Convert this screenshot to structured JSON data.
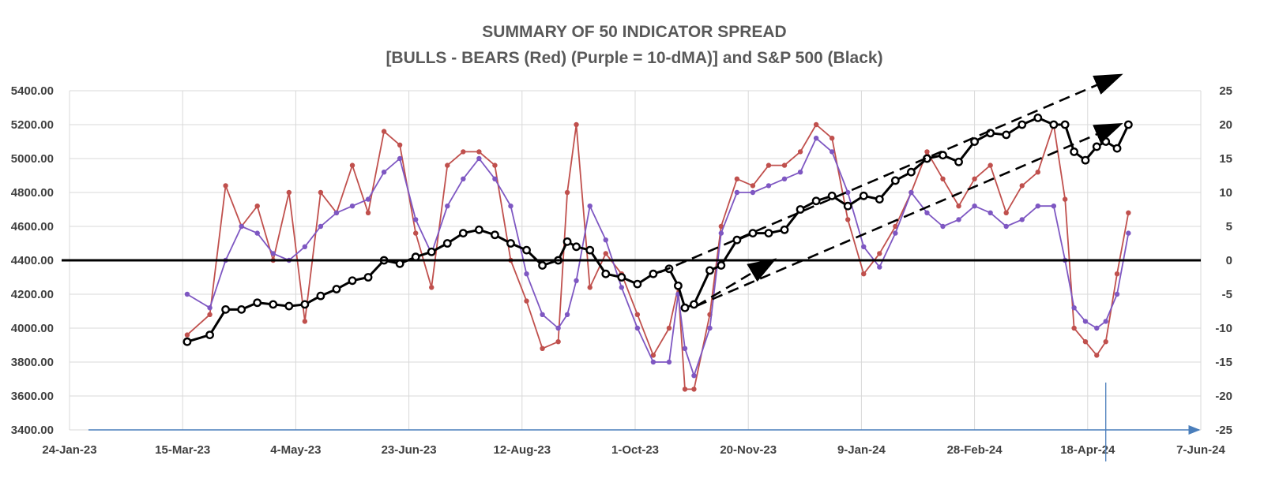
{
  "chart_data": {
    "type": "line",
    "title": "SUMMARY OF 50 INDICATOR SPREAD",
    "subtitle": "[BULLS - BEARS (Red) (Purple = 10-dMA)] and S&P 500 (Black)",
    "xlabel": "",
    "ylabel": "",
    "x_ticks": [
      "24-Jan-23",
      "15-Mar-23",
      "4-May-23",
      "23-Jun-23",
      "12-Aug-23",
      "1-Oct-23",
      "20-Nov-23",
      "9-Jan-24",
      "28-Feb-24",
      "18-Apr-24",
      "7-Jun-24"
    ],
    "xlim": [
      "2023-01-24",
      "2024-06-07"
    ],
    "y_left_ticks": [
      "3400.00",
      "3600.00",
      "3800.00",
      "4000.00",
      "4200.00",
      "4400.00",
      "4600.00",
      "4800.00",
      "5000.00",
      "5200.00",
      "5400.00"
    ],
    "y_left_lim": [
      3400,
      5400
    ],
    "y_right_ticks": [
      "-25",
      "-20",
      "-15",
      "-10",
      "-5",
      "0",
      "5",
      "10",
      "15",
      "20",
      "25"
    ],
    "y_right_lim": [
      -25,
      25
    ],
    "grid": true,
    "legend": "none",
    "colors": {
      "spread": "#c0504d",
      "ma": "#7e57c2",
      "sp500": "#000000",
      "zero_line": "#000000",
      "trend": "#000000",
      "axis": "#4a7ebb"
    },
    "series": [
      {
        "axis": "right",
        "color": "#c0504d",
        "x": [
          "2023-03-17",
          "2023-03-27",
          "2023-04-03",
          "2023-04-10",
          "2023-04-17",
          "2023-04-24",
          "2023-05-01",
          "2023-05-08",
          "2023-05-15",
          "2023-05-22",
          "2023-05-29",
          "2023-06-05",
          "2023-06-12",
          "2023-06-19",
          "2023-06-26",
          "2023-07-03",
          "2023-07-10",
          "2023-07-17",
          "2023-07-24",
          "2023-07-31",
          "2023-08-07",
          "2023-08-14",
          "2023-08-21",
          "2023-08-28",
          "2023-09-01",
          "2023-09-05",
          "2023-09-11",
          "2023-09-18",
          "2023-09-25",
          "2023-10-02",
          "2023-10-09",
          "2023-10-16",
          "2023-10-20",
          "2023-10-23",
          "2023-10-27",
          "2023-11-03",
          "2023-11-08",
          "2023-11-15",
          "2023-11-22",
          "2023-11-29",
          "2023-12-06",
          "2023-12-13",
          "2023-12-20",
          "2023-12-27",
          "2024-01-03",
          "2024-01-10",
          "2024-01-17",
          "2024-01-24",
          "2024-01-31",
          "2024-02-07",
          "2024-02-14",
          "2024-02-21",
          "2024-02-28",
          "2024-03-06",
          "2024-03-13",
          "2024-03-20",
          "2024-03-27",
          "2024-04-03",
          "2024-04-08",
          "2024-04-12",
          "2024-04-17",
          "2024-04-22",
          "2024-04-26",
          "2024-05-01",
          "2024-05-06"
        ],
        "values": [
          -11,
          -8,
          11,
          5,
          8,
          0,
          10,
          -9,
          10,
          7,
          14,
          7,
          19,
          17,
          4,
          -4,
          14,
          16,
          16,
          14,
          0,
          -6,
          -13,
          -12,
          10,
          20,
          -4,
          1,
          -2,
          -8,
          -14,
          -10,
          -4,
          -19,
          -19,
          -8,
          5,
          12,
          11,
          14,
          14,
          16,
          20,
          18,
          6,
          -2,
          1,
          5,
          10,
          16,
          12,
          8,
          12,
          14,
          7,
          11,
          13,
          20,
          9,
          -10,
          -12,
          -14,
          -12,
          -2,
          7
        ]
      },
      {
        "axis": "right",
        "color": "#7e57c2",
        "x": [
          "2023-03-17",
          "2023-03-27",
          "2023-04-03",
          "2023-04-10",
          "2023-04-17",
          "2023-04-24",
          "2023-05-01",
          "2023-05-08",
          "2023-05-15",
          "2023-05-22",
          "2023-05-29",
          "2023-06-05",
          "2023-06-12",
          "2023-06-19",
          "2023-06-26",
          "2023-07-03",
          "2023-07-10",
          "2023-07-17",
          "2023-07-24",
          "2023-07-31",
          "2023-08-07",
          "2023-08-14",
          "2023-08-21",
          "2023-08-28",
          "2023-09-01",
          "2023-09-05",
          "2023-09-11",
          "2023-09-18",
          "2023-09-25",
          "2023-10-02",
          "2023-10-09",
          "2023-10-16",
          "2023-10-20",
          "2023-10-23",
          "2023-10-27",
          "2023-11-03",
          "2023-11-08",
          "2023-11-15",
          "2023-11-22",
          "2023-11-29",
          "2023-12-06",
          "2023-12-13",
          "2023-12-20",
          "2023-12-27",
          "2024-01-03",
          "2024-01-10",
          "2024-01-17",
          "2024-01-24",
          "2024-01-31",
          "2024-02-07",
          "2024-02-14",
          "2024-02-21",
          "2024-02-28",
          "2024-03-06",
          "2024-03-13",
          "2024-03-20",
          "2024-03-27",
          "2024-04-03",
          "2024-04-08",
          "2024-04-12",
          "2024-04-17",
          "2024-04-22",
          "2024-04-26",
          "2024-05-01",
          "2024-05-06"
        ],
        "values": [
          -5,
          -7,
          0,
          5,
          4,
          1,
          0,
          2,
          5,
          7,
          8,
          9,
          13,
          15,
          6,
          1,
          8,
          12,
          15,
          12,
          8,
          -2,
          -8,
          -10,
          -8,
          -3,
          8,
          3,
          -4,
          -10,
          -15,
          -15,
          -5,
          -13,
          -17,
          -10,
          4,
          10,
          10,
          11,
          12,
          13,
          18,
          16,
          10,
          2,
          -1,
          4,
          10,
          7,
          5,
          6,
          8,
          7,
          5,
          6,
          8,
          8,
          0,
          -7,
          -9,
          -10,
          -9,
          -5,
          4
        ]
      },
      {
        "axis": "left",
        "color": "#000000",
        "x": [
          "2023-03-17",
          "2023-03-27",
          "2023-04-03",
          "2023-04-10",
          "2023-04-17",
          "2023-04-24",
          "2023-05-01",
          "2023-05-08",
          "2023-05-15",
          "2023-05-22",
          "2023-05-29",
          "2023-06-05",
          "2023-06-12",
          "2023-06-19",
          "2023-06-26",
          "2023-07-03",
          "2023-07-10",
          "2023-07-17",
          "2023-07-24",
          "2023-07-31",
          "2023-08-07",
          "2023-08-14",
          "2023-08-21",
          "2023-08-28",
          "2023-09-01",
          "2023-09-05",
          "2023-09-11",
          "2023-09-18",
          "2023-09-25",
          "2023-10-02",
          "2023-10-09",
          "2023-10-16",
          "2023-10-20",
          "2023-10-23",
          "2023-10-27",
          "2023-11-03",
          "2023-11-08",
          "2023-11-15",
          "2023-11-22",
          "2023-11-29",
          "2023-12-06",
          "2023-12-13",
          "2023-12-20",
          "2023-12-27",
          "2024-01-03",
          "2024-01-10",
          "2024-01-17",
          "2024-01-24",
          "2024-01-31",
          "2024-02-07",
          "2024-02-14",
          "2024-02-21",
          "2024-02-28",
          "2024-03-06",
          "2024-03-13",
          "2024-03-20",
          "2024-03-27",
          "2024-04-03",
          "2024-04-08",
          "2024-04-12",
          "2024-04-17",
          "2024-04-22",
          "2024-04-26",
          "2024-05-01",
          "2024-05-06"
        ],
        "values": [
          3920,
          3960,
          4110,
          4110,
          4150,
          4140,
          4130,
          4140,
          4190,
          4230,
          4280,
          4300,
          4400,
          4380,
          4420,
          4450,
          4500,
          4560,
          4580,
          4550,
          4500,
          4460,
          4370,
          4400,
          4510,
          4480,
          4460,
          4320,
          4300,
          4260,
          4320,
          4350,
          4250,
          4120,
          4140,
          4340,
          4370,
          4520,
          4560,
          4560,
          4580,
          4700,
          4750,
          4780,
          4720,
          4780,
          4760,
          4870,
          4920,
          5000,
          5020,
          4980,
          5100,
          5150,
          5140,
          5200,
          5240,
          5200,
          5200,
          5040,
          4990,
          5070,
          5100,
          5060,
          5200
        ]
      }
    ],
    "zero_line_value": 0,
    "trend_lines": [
      {
        "from": [
          "2023-10-12",
          4330
        ],
        "to": [
          "2024-05-02",
          5490
        ]
      },
      {
        "from": [
          "2023-10-28",
          4130
        ],
        "to": [
          "2024-05-02",
          5200
        ]
      },
      {
        "from": [
          "2023-10-28",
          4130
        ],
        "to": [
          "2023-12-01",
          4400
        ]
      }
    ],
    "marker_line": {
      "x": "2024-04-26"
    }
  }
}
